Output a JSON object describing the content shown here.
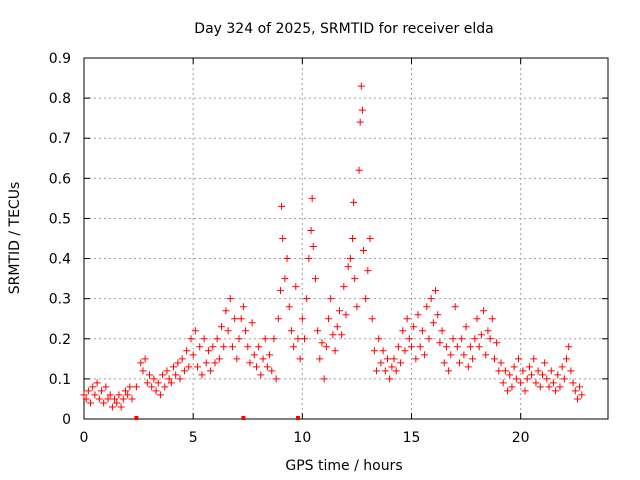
{
  "chart_data": {
    "type": "scatter",
    "title": "Day 324 of 2025, SRMTID for receiver elda",
    "xlabel": "GPS time / hours",
    "ylabel": "SRMTID / TECUs",
    "xlim": [
      0,
      24
    ],
    "ylim": [
      0,
      0.9
    ],
    "x_ticks": [
      0,
      5,
      10,
      15,
      20
    ],
    "x_tick_labels": [
      "0",
      "5",
      "10",
      "15",
      "20"
    ],
    "y_ticks": [
      0,
      0.1,
      0.2,
      0.3,
      0.4,
      0.5,
      0.6,
      0.7,
      0.8,
      0.9
    ],
    "y_tick_labels": [
      "0",
      "0.1",
      "0.2",
      "0.3",
      "0.4",
      "0.5",
      "0.6",
      "0.7",
      "0.8",
      "0.9"
    ],
    "grid": true,
    "marker": "+",
    "series_color": "#ff0000",
    "series": [
      {
        "name": "SRMTID",
        "points": [
          [
            0.0,
            0.06
          ],
          [
            0.1,
            0.05
          ],
          [
            0.2,
            0.07
          ],
          [
            0.3,
            0.04
          ],
          [
            0.4,
            0.08
          ],
          [
            0.5,
            0.06
          ],
          [
            0.6,
            0.09
          ],
          [
            0.7,
            0.05
          ],
          [
            0.8,
            0.07
          ],
          [
            0.9,
            0.04
          ],
          [
            1.0,
            0.08
          ],
          [
            1.1,
            0.05
          ],
          [
            1.2,
            0.06
          ],
          [
            1.3,
            0.03
          ],
          [
            1.4,
            0.05
          ],
          [
            1.5,
            0.04
          ],
          [
            1.6,
            0.06
          ],
          [
            1.7,
            0.03
          ],
          [
            1.8,
            0.05
          ],
          [
            1.9,
            0.07
          ],
          [
            2.0,
            0.06
          ],
          [
            2.1,
            0.08
          ],
          [
            2.2,
            0.05
          ],
          [
            2.4,
            0.08
          ],
          [
            2.6,
            0.14
          ],
          [
            2.7,
            0.12
          ],
          [
            2.8,
            0.15
          ],
          [
            2.9,
            0.09
          ],
          [
            3.0,
            0.11
          ],
          [
            3.1,
            0.08
          ],
          [
            3.2,
            0.1
          ],
          [
            3.3,
            0.07
          ],
          [
            3.4,
            0.09
          ],
          [
            3.5,
            0.06
          ],
          [
            3.6,
            0.11
          ],
          [
            3.7,
            0.08
          ],
          [
            3.8,
            0.12
          ],
          [
            3.9,
            0.1
          ],
          [
            4.0,
            0.09
          ],
          [
            4.1,
            0.13
          ],
          [
            4.2,
            0.11
          ],
          [
            4.3,
            0.14
          ],
          [
            4.4,
            0.1
          ],
          [
            4.5,
            0.15
          ],
          [
            4.6,
            0.12
          ],
          [
            4.7,
            0.17
          ],
          [
            4.8,
            0.13
          ],
          [
            4.9,
            0.2
          ],
          [
            5.0,
            0.16
          ],
          [
            5.1,
            0.22
          ],
          [
            5.2,
            0.13
          ],
          [
            5.3,
            0.18
          ],
          [
            5.4,
            0.11
          ],
          [
            5.5,
            0.2
          ],
          [
            5.6,
            0.14
          ],
          [
            5.7,
            0.17
          ],
          [
            5.8,
            0.12
          ],
          [
            5.9,
            0.18
          ],
          [
            6.0,
            0.14
          ],
          [
            6.1,
            0.2
          ],
          [
            6.2,
            0.15
          ],
          [
            6.3,
            0.23
          ],
          [
            6.4,
            0.18
          ],
          [
            6.5,
            0.27
          ],
          [
            6.6,
            0.22
          ],
          [
            6.7,
            0.3
          ],
          [
            6.8,
            0.18
          ],
          [
            6.9,
            0.25
          ],
          [
            7.0,
            0.15
          ],
          [
            7.1,
            0.2
          ],
          [
            7.2,
            0.25
          ],
          [
            7.3,
            0.28
          ],
          [
            7.4,
            0.22
          ],
          [
            7.5,
            0.18
          ],
          [
            7.6,
            0.14
          ],
          [
            7.7,
            0.24
          ],
          [
            7.8,
            0.16
          ],
          [
            7.9,
            0.13
          ],
          [
            8.0,
            0.18
          ],
          [
            8.1,
            0.11
          ],
          [
            8.2,
            0.15
          ],
          [
            8.3,
            0.2
          ],
          [
            8.4,
            0.13
          ],
          [
            8.5,
            0.16
          ],
          [
            8.6,
            0.12
          ],
          [
            8.7,
            0.2
          ],
          [
            8.8,
            0.1
          ],
          [
            8.9,
            0.25
          ],
          [
            9.0,
            0.32
          ],
          [
            9.05,
            0.53
          ],
          [
            9.1,
            0.45
          ],
          [
            9.2,
            0.35
          ],
          [
            9.3,
            0.4
          ],
          [
            9.4,
            0.28
          ],
          [
            9.5,
            0.22
          ],
          [
            9.6,
            0.18
          ],
          [
            9.7,
            0.33
          ],
          [
            9.8,
            0.2
          ],
          [
            9.9,
            0.15
          ],
          [
            10.0,
            0.25
          ],
          [
            10.1,
            0.2
          ],
          [
            10.2,
            0.3
          ],
          [
            10.3,
            0.4
          ],
          [
            10.4,
            0.47
          ],
          [
            10.45,
            0.55
          ],
          [
            10.5,
            0.43
          ],
          [
            10.6,
            0.35
          ],
          [
            10.7,
            0.22
          ],
          [
            10.8,
            0.15
          ],
          [
            10.9,
            0.19
          ],
          [
            11.0,
            0.1
          ],
          [
            11.1,
            0.18
          ],
          [
            11.2,
            0.25
          ],
          [
            11.3,
            0.3
          ],
          [
            11.4,
            0.21
          ],
          [
            11.5,
            0.17
          ],
          [
            11.6,
            0.23
          ],
          [
            11.7,
            0.27
          ],
          [
            11.8,
            0.21
          ],
          [
            11.9,
            0.33
          ],
          [
            12.0,
            0.26
          ],
          [
            12.1,
            0.38
          ],
          [
            12.2,
            0.4
          ],
          [
            12.3,
            0.45
          ],
          [
            12.35,
            0.54
          ],
          [
            12.4,
            0.35
          ],
          [
            12.5,
            0.28
          ],
          [
            12.6,
            0.62
          ],
          [
            12.65,
            0.74
          ],
          [
            12.7,
            0.83
          ],
          [
            12.75,
            0.77
          ],
          [
            12.8,
            0.42
          ],
          [
            12.9,
            0.3
          ],
          [
            13.0,
            0.37
          ],
          [
            13.1,
            0.45
          ],
          [
            13.2,
            0.25
          ],
          [
            13.3,
            0.17
          ],
          [
            13.4,
            0.12
          ],
          [
            13.5,
            0.2
          ],
          [
            13.6,
            0.14
          ],
          [
            13.7,
            0.17
          ],
          [
            13.8,
            0.12
          ],
          [
            13.9,
            0.15
          ],
          [
            14.0,
            0.1
          ],
          [
            14.1,
            0.13
          ],
          [
            14.2,
            0.15
          ],
          [
            14.3,
            0.12
          ],
          [
            14.4,
            0.18
          ],
          [
            14.5,
            0.14
          ],
          [
            14.6,
            0.22
          ],
          [
            14.7,
            0.17
          ],
          [
            14.8,
            0.25
          ],
          [
            14.9,
            0.2
          ],
          [
            15.0,
            0.18
          ],
          [
            15.1,
            0.23
          ],
          [
            15.2,
            0.15
          ],
          [
            15.3,
            0.26
          ],
          [
            15.4,
            0.18
          ],
          [
            15.5,
            0.22
          ],
          [
            15.6,
            0.16
          ],
          [
            15.7,
            0.28
          ],
          [
            15.8,
            0.2
          ],
          [
            15.9,
            0.3
          ],
          [
            16.0,
            0.24
          ],
          [
            16.1,
            0.32
          ],
          [
            16.2,
            0.26
          ],
          [
            16.3,
            0.19
          ],
          [
            16.4,
            0.22
          ],
          [
            16.5,
            0.14
          ],
          [
            16.6,
            0.18
          ],
          [
            16.7,
            0.12
          ],
          [
            16.8,
            0.16
          ],
          [
            16.9,
            0.2
          ],
          [
            17.0,
            0.28
          ],
          [
            17.1,
            0.18
          ],
          [
            17.2,
            0.14
          ],
          [
            17.3,
            0.2
          ],
          [
            17.4,
            0.16
          ],
          [
            17.5,
            0.23
          ],
          [
            17.6,
            0.13
          ],
          [
            17.7,
            0.18
          ],
          [
            17.8,
            0.15
          ],
          [
            17.9,
            0.2
          ],
          [
            18.0,
            0.25
          ],
          [
            18.1,
            0.18
          ],
          [
            18.2,
            0.21
          ],
          [
            18.3,
            0.27
          ],
          [
            18.4,
            0.16
          ],
          [
            18.5,
            0.22
          ],
          [
            18.6,
            0.2
          ],
          [
            18.7,
            0.25
          ],
          [
            18.8,
            0.15
          ],
          [
            18.9,
            0.19
          ],
          [
            19.0,
            0.12
          ],
          [
            19.1,
            0.14
          ],
          [
            19.2,
            0.09
          ],
          [
            19.3,
            0.12
          ],
          [
            19.4,
            0.07
          ],
          [
            19.5,
            0.11
          ],
          [
            19.6,
            0.08
          ],
          [
            19.7,
            0.13
          ],
          [
            19.8,
            0.1
          ],
          [
            19.9,
            0.15
          ],
          [
            20.0,
            0.09
          ],
          [
            20.1,
            0.12
          ],
          [
            20.2,
            0.07
          ],
          [
            20.3,
            0.1
          ],
          [
            20.4,
            0.13
          ],
          [
            20.5,
            0.11
          ],
          [
            20.6,
            0.15
          ],
          [
            20.7,
            0.09
          ],
          [
            20.8,
            0.12
          ],
          [
            20.9,
            0.08
          ],
          [
            21.0,
            0.11
          ],
          [
            21.1,
            0.14
          ],
          [
            21.2,
            0.1
          ],
          [
            21.3,
            0.08
          ],
          [
            21.4,
            0.12
          ],
          [
            21.5,
            0.09
          ],
          [
            21.6,
            0.07
          ],
          [
            21.7,
            0.11
          ],
          [
            21.8,
            0.08
          ],
          [
            21.9,
            0.13
          ],
          [
            22.0,
            0.1
          ],
          [
            22.1,
            0.15
          ],
          [
            22.2,
            0.18
          ],
          [
            22.3,
            0.12
          ],
          [
            22.4,
            0.09
          ],
          [
            22.5,
            0.07
          ],
          [
            22.6,
            0.05
          ],
          [
            22.7,
            0.08
          ],
          [
            22.8,
            0.06
          ]
        ]
      }
    ],
    "baseline_markers_x": [
      2.4,
      7.3,
      9.8
    ]
  }
}
